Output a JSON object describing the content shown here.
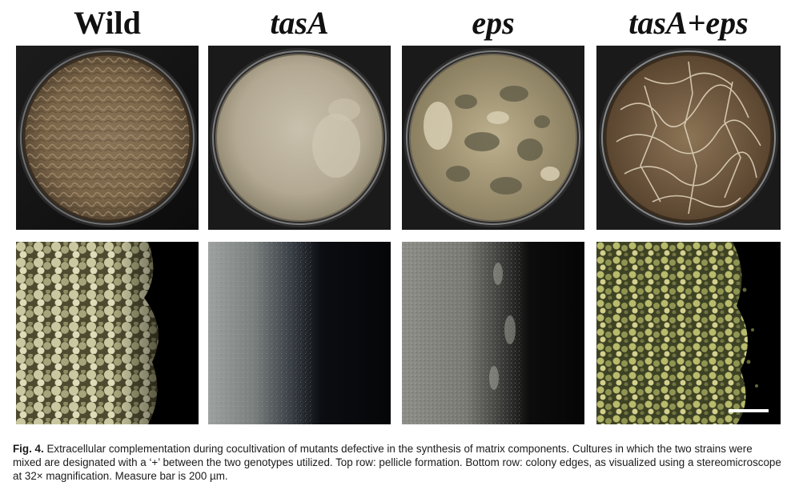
{
  "figure": {
    "columns": [
      {
        "label": "Wild",
        "italic": false
      },
      {
        "label": "tasA",
        "italic": true
      },
      {
        "label": "eps",
        "italic": true
      },
      {
        "label": "tasA+eps",
        "italic": true
      }
    ],
    "caption": {
      "label": "Fig. 4.",
      "text": "Extracellular complementation during cocultivation of mutants defective in the synthesis of matrix components. Cultures in which the two strains were mixed are designated with a ‘+’ between the two genotypes utilized. Top row: pellicle formation. Bottom row: colony edges, as visualized using a stereomicroscope at 32× magnification. Measure bar is 200 µm."
    }
  }
}
